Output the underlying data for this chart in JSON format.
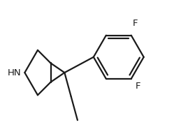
{
  "background_color": "#ffffff",
  "line_color": "#1a1a1a",
  "line_width": 1.6,
  "font_size": 9.5,
  "HN_label": "HN",
  "F_label": "F",
  "figsize": [
    2.59,
    1.92
  ],
  "dpi": 100,
  "xlim": [
    -1.3,
    2.7
  ],
  "ylim": [
    -1.5,
    1.6
  ]
}
